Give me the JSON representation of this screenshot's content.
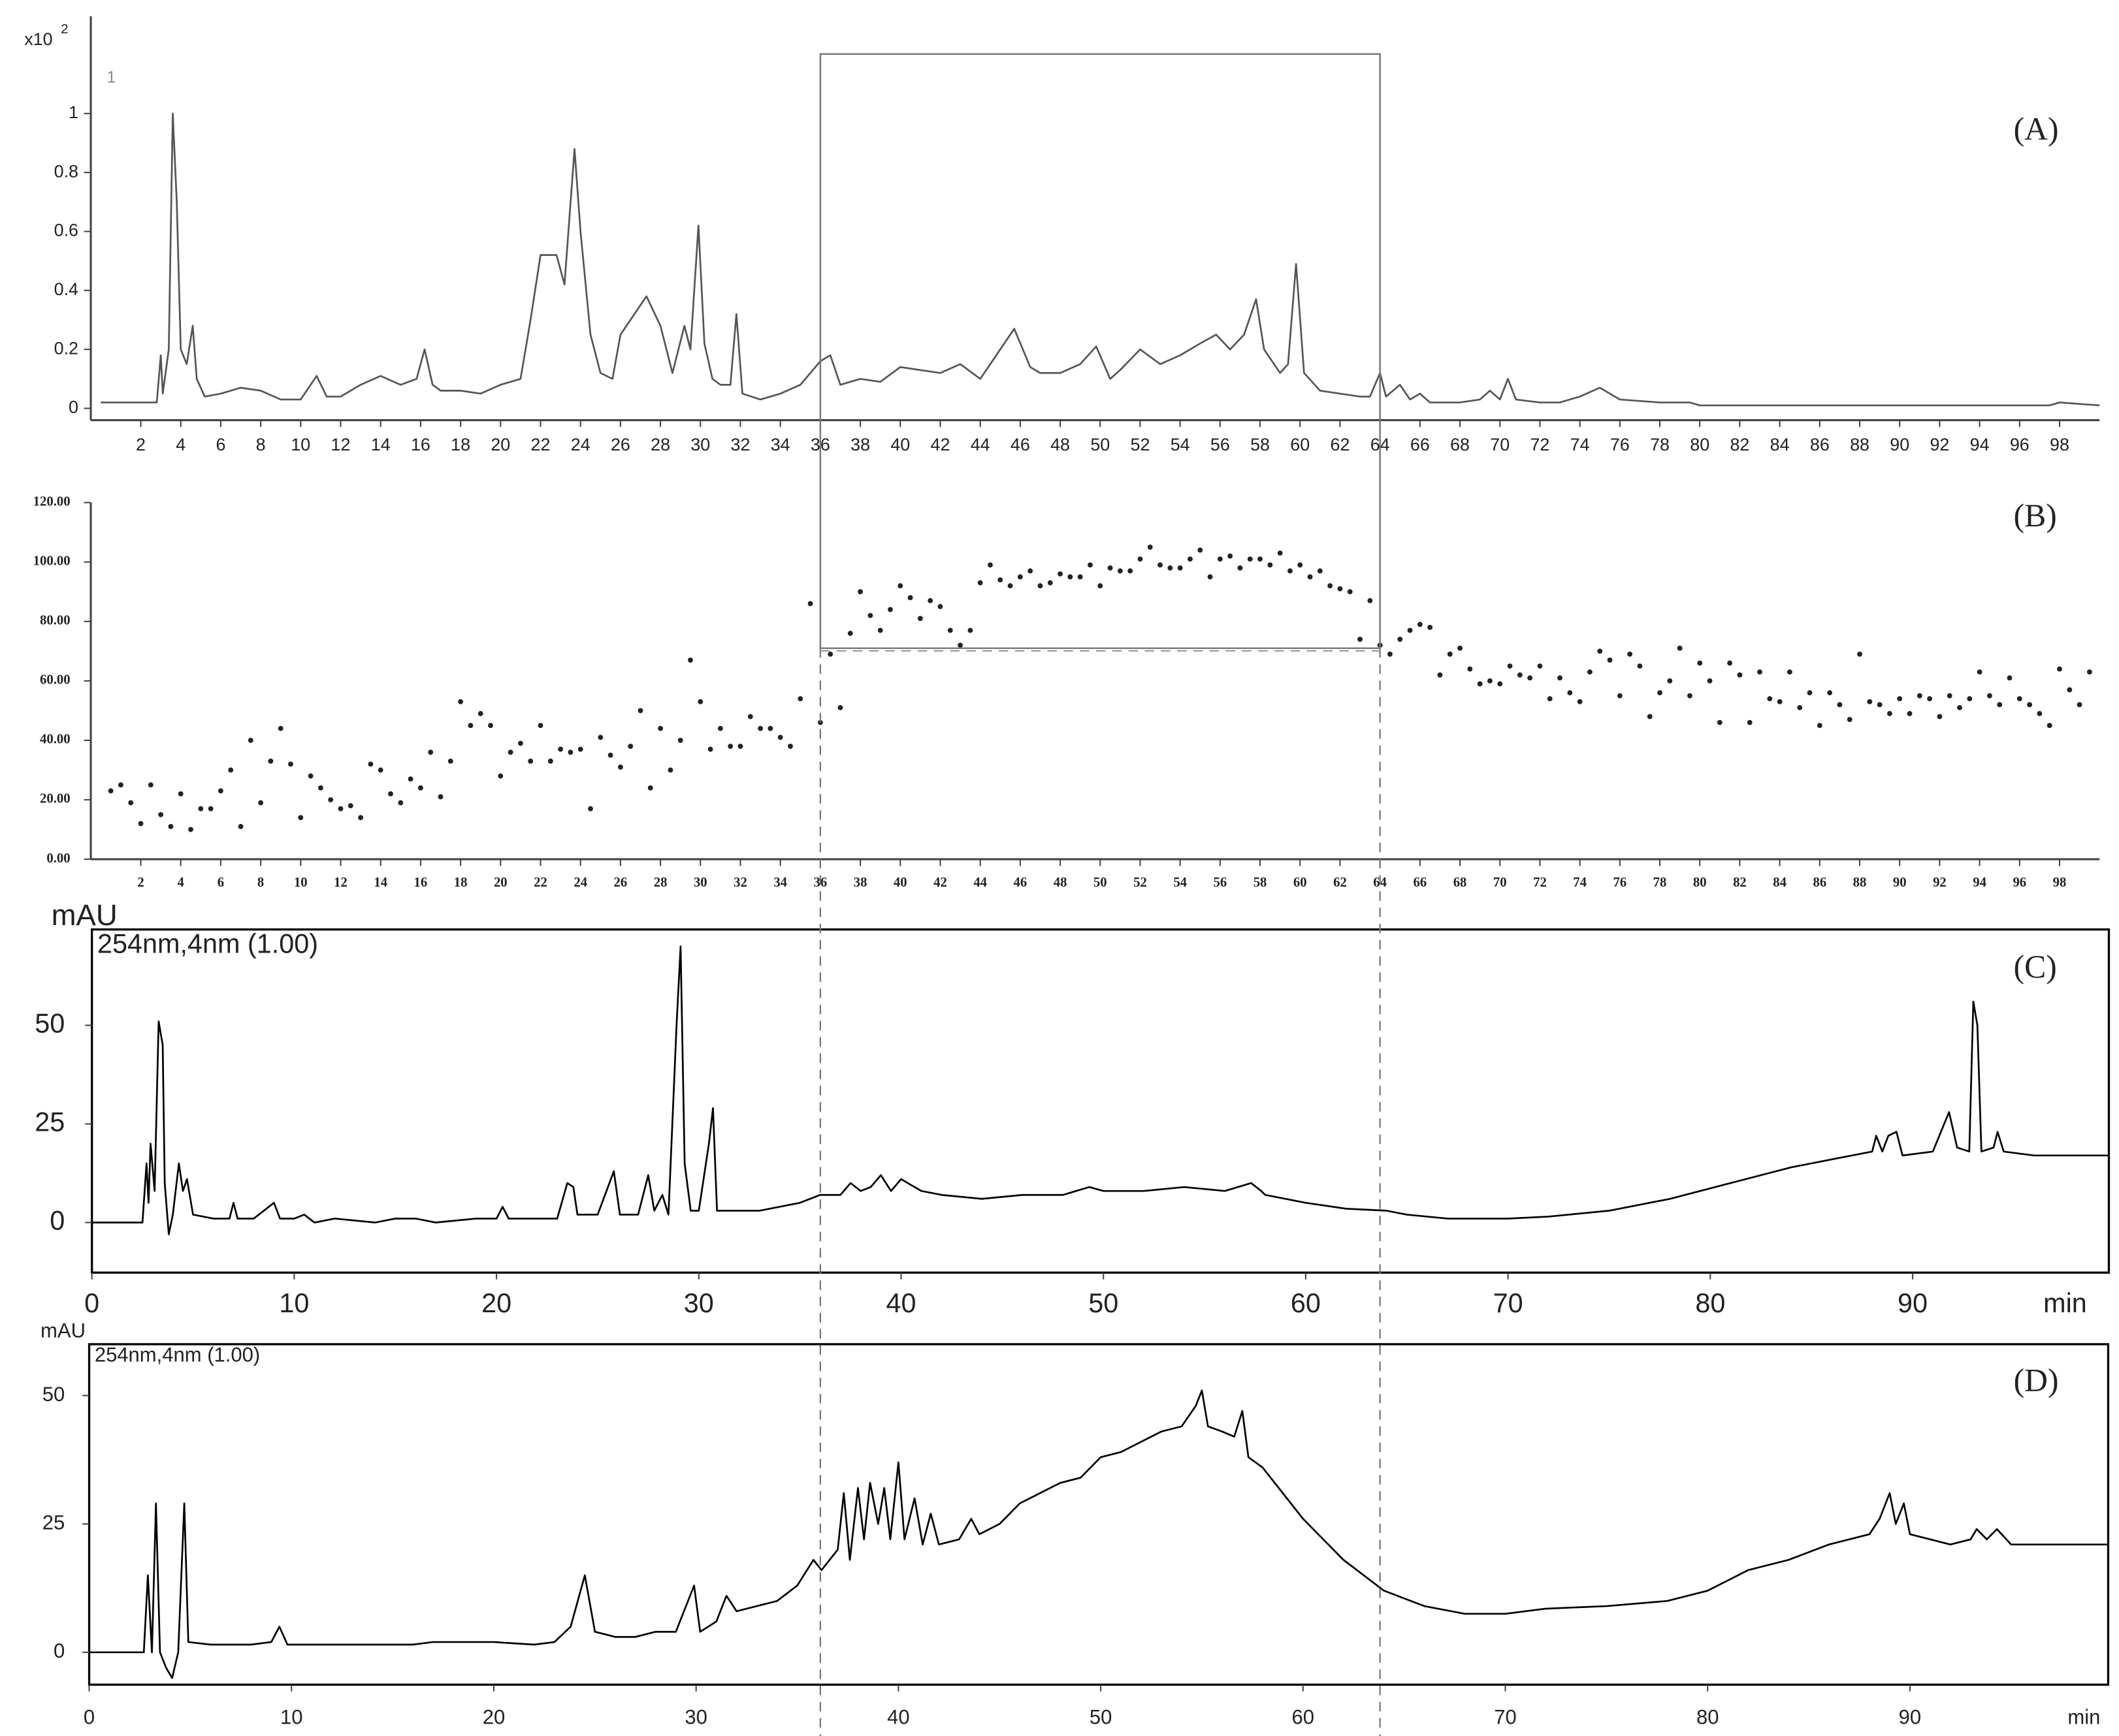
{
  "chart_data": [
    {
      "type": "line",
      "unit_label": "x10",
      "unit_exponent": "2",
      "trace_label": "1",
      "panel_label": "(A)",
      "color": "#555555",
      "xlim": [
        -0.5,
        100
      ],
      "ylim": [
        -0.04,
        1.33
      ],
      "xticks": [
        2,
        4,
        6,
        8,
        10,
        12,
        14,
        16,
        18,
        20,
        22,
        24,
        26,
        28,
        30,
        32,
        34,
        36,
        38,
        40,
        42,
        44,
        46,
        48,
        50,
        52,
        54,
        56,
        58,
        60,
        62,
        64,
        66,
        68,
        70,
        72,
        74,
        76,
        78,
        80,
        82,
        84,
        86,
        88,
        90,
        92,
        94,
        96,
        98
      ],
      "yticks": [
        0,
        0.2,
        0.4,
        0.6,
        0.8,
        1
      ],
      "x": [
        0,
        2.5,
        2.8,
        3.0,
        3.1,
        3.4,
        3.6,
        3.8,
        4.0,
        4.3,
        4.6,
        4.8,
        5.2,
        6,
        7,
        8,
        9,
        10,
        10.8,
        11.3,
        12,
        13,
        14,
        15,
        15.8,
        16.2,
        16.6,
        17,
        18,
        19,
        20,
        21,
        21.5,
        22,
        22.8,
        23.2,
        23.7,
        24,
        24.5,
        25,
        25.6,
        26,
        26.5,
        27.3,
        28,
        28.6,
        29.2,
        29.5,
        29.9,
        30.2,
        30.6,
        31,
        31.5,
        31.8,
        32.1,
        33,
        34,
        35,
        36,
        36.5,
        37,
        38,
        39,
        40,
        41,
        42,
        43,
        44,
        45,
        45.7,
        46.5,
        47,
        48,
        49,
        49.8,
        50.5,
        51,
        52,
        53,
        54,
        55,
        55.8,
        56.5,
        57.2,
        57.8,
        58.2,
        59,
        59.4,
        59.8,
        60.2,
        61,
        62,
        63,
        63.5,
        64,
        64.3,
        65,
        65.5,
        66,
        66.5,
        68,
        69,
        69.5,
        70,
        70.4,
        70.8,
        72,
        73,
        74,
        75,
        76,
        78,
        79.5,
        80,
        85,
        90,
        95,
        97.5,
        98,
        100
      ],
      "values": [
        0.02,
        0.02,
        0.02,
        0.18,
        0.05,
        0.2,
        1.0,
        0.7,
        0.2,
        0.15,
        0.28,
        0.1,
        0.04,
        0.05,
        0.07,
        0.06,
        0.03,
        0.03,
        0.11,
        0.04,
        0.04,
        0.08,
        0.11,
        0.08,
        0.1,
        0.2,
        0.08,
        0.06,
        0.06,
        0.05,
        0.08,
        0.1,
        0.3,
        0.52,
        0.52,
        0.42,
        0.88,
        0.6,
        0.25,
        0.12,
        0.1,
        0.25,
        0.3,
        0.38,
        0.28,
        0.12,
        0.28,
        0.2,
        0.62,
        0.22,
        0.1,
        0.08,
        0.08,
        0.32,
        0.05,
        0.03,
        0.05,
        0.08,
        0.16,
        0.18,
        0.08,
        0.1,
        0.09,
        0.14,
        0.13,
        0.12,
        0.15,
        0.1,
        0.2,
        0.27,
        0.14,
        0.12,
        0.12,
        0.15,
        0.21,
        0.1,
        0.13,
        0.2,
        0.15,
        0.18,
        0.22,
        0.25,
        0.2,
        0.25,
        0.37,
        0.2,
        0.12,
        0.15,
        0.49,
        0.12,
        0.06,
        0.05,
        0.04,
        0.04,
        0.12,
        0.04,
        0.08,
        0.03,
        0.05,
        0.02,
        0.02,
        0.03,
        0.06,
        0.03,
        0.1,
        0.03,
        0.02,
        0.02,
        0.04,
        0.07,
        0.03,
        0.02,
        0.02,
        0.01,
        0.01,
        0.01,
        0.01,
        0.01,
        0.02,
        0.01
      ]
    },
    {
      "type": "scatter",
      "panel_label": "(B)",
      "color": "#222222",
      "highlight_x": [
        36,
        64
      ],
      "highlight_y": 71,
      "xlim": [
        -0.5,
        100
      ],
      "ylim": [
        0,
        120
      ],
      "xticks": [
        2,
        4,
        6,
        8,
        10,
        12,
        14,
        16,
        18,
        20,
        22,
        24,
        26,
        28,
        30,
        32,
        34,
        36,
        38,
        40,
        42,
        44,
        46,
        48,
        50,
        52,
        54,
        56,
        58,
        60,
        62,
        64,
        66,
        68,
        70,
        72,
        74,
        76,
        78,
        80,
        82,
        84,
        86,
        88,
        90,
        92,
        94,
        96,
        98
      ],
      "yticks": [
        {
          "value": 0,
          "label": "0.00"
        },
        {
          "value": 20,
          "label": "20.00"
        },
        {
          "value": 40,
          "label": "40.00"
        },
        {
          "value": 60,
          "label": "60.00"
        },
        {
          "value": 80,
          "label": "80.00"
        },
        {
          "value": 100,
          "label": "100.00"
        },
        {
          "value": 120,
          "label": "120.00"
        }
      ],
      "x": [
        0.5,
        1,
        1.5,
        2,
        2.5,
        3,
        3.5,
        4,
        4.5,
        5,
        5.5,
        6,
        6.5,
        7,
        7.5,
        8,
        8.5,
        9,
        9.5,
        10,
        10.5,
        11,
        11.5,
        12,
        12.5,
        13,
        13.5,
        14,
        14.5,
        15,
        15.5,
        16,
        16.5,
        17,
        17.5,
        18,
        18.5,
        19,
        19.5,
        20,
        20.5,
        21,
        21.5,
        22,
        22.5,
        23,
        23.5,
        24,
        24.5,
        25,
        25.5,
        26,
        26.5,
        27,
        27.5,
        28,
        28.5,
        29,
        29.5,
        30,
        30.5,
        31,
        31.5,
        32,
        32.5,
        33,
        33.5,
        34,
        34.5,
        35,
        35.5,
        36,
        36.5,
        37,
        37.5,
        38,
        38.5,
        39,
        39.5,
        40,
        40.5,
        41,
        41.5,
        42,
        42.5,
        43,
        43.5,
        44,
        44.5,
        45,
        45.5,
        46,
        46.5,
        47,
        47.5,
        48,
        48.5,
        49,
        49.5,
        50,
        50.5,
        51,
        51.5,
        52,
        52.5,
        53,
        53.5,
        54,
        54.5,
        55,
        55.5,
        56,
        56.5,
        57,
        57.5,
        58,
        58.5,
        59,
        59.5,
        60,
        60.5,
        61,
        61.5,
        62,
        62.5,
        63,
        63.5,
        64,
        64.5,
        65,
        65.5,
        66,
        66.5,
        67,
        67.5,
        68,
        68.5,
        69,
        69.5,
        70,
        70.5,
        71,
        71.5,
        72,
        72.5,
        73,
        73.5,
        74,
        74.5,
        75,
        75.5,
        76,
        76.5,
        77,
        77.5,
        78,
        78.5,
        79,
        79.5,
        80,
        80.5,
        81,
        81.5,
        82,
        82.5,
        83,
        83.5,
        84,
        84.5,
        85,
        85.5,
        86,
        86.5,
        87,
        87.5,
        88,
        88.5,
        89,
        89.5,
        90,
        90.5,
        91,
        91.5,
        92,
        92.5,
        93,
        93.5,
        94,
        94.5,
        95,
        95.5,
        96,
        96.5,
        97,
        97.5,
        98,
        98.5,
        99,
        99.5
      ],
      "values": [
        23,
        25,
        19,
        12,
        25,
        15,
        11,
        22,
        10,
        17,
        17,
        23,
        30,
        11,
        40,
        19,
        33,
        44,
        32,
        14,
        28,
        24,
        20,
        17,
        18,
        14,
        32,
        30,
        22,
        19,
        27,
        24,
        36,
        21,
        33,
        53,
        45,
        49,
        45,
        28,
        36,
        39,
        33,
        45,
        33,
        37,
        36,
        37,
        17,
        41,
        35,
        31,
        38,
        50,
        24,
        44,
        30,
        40,
        67,
        53,
        37,
        44,
        38,
        38,
        48,
        44,
        44,
        41,
        38,
        54,
        86,
        46,
        69,
        51,
        76,
        90,
        82,
        77,
        84,
        92,
        88,
        81,
        87,
        85,
        77,
        72,
        77,
        93,
        99,
        94,
        92,
        95,
        97,
        92,
        93,
        96,
        95,
        95,
        99,
        92,
        98,
        97,
        97,
        101,
        105,
        99,
        98,
        98,
        101,
        104,
        95,
        101,
        102,
        98,
        101,
        101,
        99,
        103,
        97,
        99,
        95,
        97,
        92,
        91,
        90,
        74,
        87,
        72,
        69,
        74,
        77,
        79,
        78,
        62,
        69,
        71,
        64,
        59,
        60,
        59,
        65,
        62,
        61,
        65,
        54,
        61,
        56,
        53,
        63,
        70,
        67,
        55,
        69,
        65,
        48,
        56,
        60,
        71,
        55,
        66,
        60,
        46,
        66,
        62,
        46,
        63,
        54,
        53,
        63,
        51,
        56,
        45,
        56,
        52,
        47,
        69,
        53,
        52,
        49,
        54,
        49,
        55,
        54,
        48,
        55,
        51,
        54,
        63,
        55,
        52,
        61,
        54,
        52,
        49,
        45,
        64,
        57,
        52,
        63
      ]
    },
    {
      "type": "line",
      "y_label": "mAU",
      "annotation": "254nm,4nm (1.00)",
      "x_label": "min",
      "panel_label": "(C)",
      "color": "#000000",
      "xlim": [
        0,
        99.7
      ],
      "ylim": [
        -12.7,
        74.3
      ],
      "xticks": [
        0,
        10,
        20,
        30,
        40,
        50,
        60,
        70,
        80,
        90
      ],
      "yticks": [
        0,
        25,
        50
      ],
      "x": [
        0,
        2.5,
        2.7,
        2.8,
        2.9,
        3.1,
        3.3,
        3.5,
        3.6,
        3.8,
        4,
        4.3,
        4.5,
        4.7,
        5,
        6,
        6.8,
        7,
        7.2,
        8,
        9,
        9.3,
        10,
        10.5,
        11,
        12,
        14,
        15,
        16,
        17,
        19,
        20,
        20.3,
        20.6,
        22,
        23,
        23.5,
        23.8,
        24,
        25,
        25.8,
        26.1,
        27,
        27.5,
        27.8,
        28.2,
        28.5,
        28.9,
        29.1,
        29.3,
        29.6,
        30,
        30.5,
        30.7,
        30.9,
        31.5,
        33,
        35,
        36,
        37,
        37.5,
        38,
        38.5,
        39,
        39.5,
        40,
        41,
        42,
        44,
        46,
        48,
        49.3,
        50,
        52,
        54,
        56,
        57.3,
        57.8,
        58,
        60,
        62,
        64,
        65,
        67,
        70,
        72,
        75,
        78,
        81,
        84,
        86,
        88,
        88.2,
        88.5,
        88.8,
        89.2,
        89.5,
        91,
        91.8,
        92.2,
        92.8,
        93,
        93.2,
        93.4,
        94,
        94.2,
        94.5,
        96,
        98,
        99.7
      ],
      "values": [
        0,
        0,
        15,
        5,
        20,
        8,
        51,
        45,
        10,
        -3,
        2,
        15,
        8,
        11,
        2,
        1,
        1,
        5,
        1,
        1,
        5,
        1,
        1,
        2,
        0,
        1,
        0,
        1,
        1,
        0,
        1,
        1,
        4,
        1,
        1,
        1,
        10,
        9,
        2,
        2,
        13,
        2,
        2,
        12,
        3,
        7,
        2,
        50,
        70,
        15,
        3,
        3,
        20,
        29,
        3,
        3,
        3,
        5,
        7,
        7,
        10,
        8,
        9,
        12,
        8,
        11,
        8,
        7,
        6,
        7,
        7,
        9,
        8,
        8,
        9,
        8,
        10,
        8,
        7,
        5,
        3.5,
        3,
        2,
        1,
        1,
        1.5,
        3,
        6,
        10,
        14,
        16,
        18,
        22,
        18,
        22,
        23,
        17,
        18,
        28,
        19,
        18,
        56,
        50,
        18,
        19,
        23,
        18,
        17,
        17,
        17
      ]
    },
    {
      "type": "line",
      "y_label": "mAU",
      "annotation": "254nm,4nm (1.00)",
      "x_label": "min",
      "panel_label": "(D)",
      "color": "#000000",
      "xlim": [
        0,
        99.8
      ],
      "ylim": [
        -6.3,
        60
      ],
      "xticks": [
        0,
        10,
        20,
        30,
        40,
        50,
        60,
        70,
        80,
        90
      ],
      "yticks": [
        0,
        25,
        50
      ],
      "x": [
        0,
        2.7,
        2.9,
        3.1,
        3.3,
        3.5,
        3.8,
        4.1,
        4.4,
        4.7,
        4.9,
        6,
        8,
        9,
        9.4,
        9.8,
        12,
        16,
        17,
        20,
        22,
        23,
        23.8,
        24.5,
        25,
        26,
        27,
        28,
        29,
        29.9,
        30.2,
        31,
        31.5,
        32,
        34,
        35,
        35.8,
        36.2,
        37,
        37.3,
        37.6,
        38,
        38.3,
        38.6,
        39,
        39.3,
        39.6,
        40,
        40.3,
        40.8,
        41.2,
        41.6,
        42,
        43,
        43.6,
        44,
        45,
        46,
        47,
        48,
        49,
        50,
        51,
        52,
        53,
        54,
        54.7,
        55,
        55.3,
        56,
        56.6,
        57,
        57.3,
        58,
        59,
        60,
        61,
        62,
        63,
        64,
        66,
        68,
        70,
        72,
        75,
        78,
        80,
        82,
        84,
        86,
        88,
        88.5,
        89,
        89.3,
        89.7,
        90,
        91,
        92,
        93,
        93.3,
        93.8,
        94.3,
        95,
        97,
        99.8
      ],
      "values": [
        0,
        0,
        15,
        0,
        29,
        0,
        -3,
        -5,
        0,
        29,
        2,
        1.5,
        1.5,
        2,
        5,
        1.5,
        1.5,
        1.5,
        2,
        2,
        1.5,
        2,
        5,
        15,
        4,
        3,
        3,
        4,
        4,
        13,
        4,
        6,
        11,
        8,
        10,
        13,
        18,
        16,
        20,
        31,
        18,
        32,
        22,
        33,
        25,
        32,
        22,
        37,
        22,
        30,
        21,
        27,
        21,
        22,
        26,
        23,
        25,
        29,
        31,
        33,
        34,
        38,
        39,
        41,
        43,
        44,
        48,
        51,
        44,
        43,
        42,
        47,
        38,
        36,
        31,
        26,
        22,
        18,
        15,
        12,
        9,
        7.5,
        7.5,
        8.5,
        9,
        10,
        12,
        16,
        18,
        21,
        23,
        26,
        31,
        25,
        29,
        23,
        22,
        21,
        22,
        24,
        22,
        24,
        21,
        21,
        21
      ]
    }
  ]
}
